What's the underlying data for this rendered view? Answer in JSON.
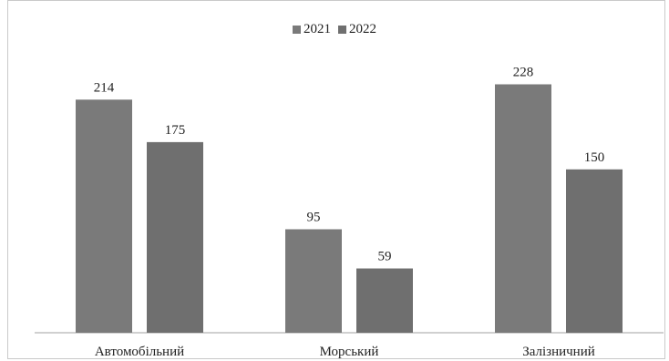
{
  "chart_data": {
    "type": "bar",
    "title": "",
    "xlabel": "",
    "ylabel": "",
    "categories": [
      "Автомобільний",
      "Морський",
      "Залізничний"
    ],
    "series": [
      {
        "name": "2021",
        "values": [
          214,
          95,
          228
        ],
        "color": "#7a7a7a"
      },
      {
        "name": "2022",
        "values": [
          175,
          59,
          150
        ],
        "color": "#6f6f6f"
      }
    ],
    "ylim": [
      0,
      250
    ],
    "grid": false,
    "legend_position": "top-center",
    "data_labels": true
  }
}
